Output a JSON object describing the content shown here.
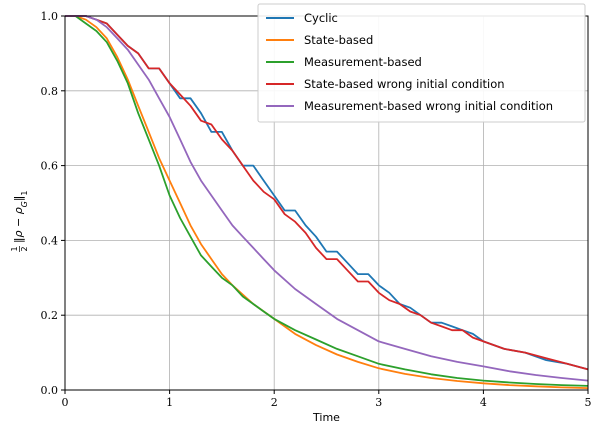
{
  "chart_data": {
    "type": "line",
    "xlabel": "Time",
    "ylabel_main": "‖ρ − ρ",
    "ylabel_sub": "G",
    "ylabel_suffix": "‖",
    "ylabel_norm": "1",
    "ylabel_frac_num": "1",
    "ylabel_frac_den": "2",
    "xlim": [
      0,
      5
    ],
    "ylim": [
      0,
      1.0
    ],
    "xticks": [
      0,
      1,
      2,
      3,
      4,
      5
    ],
    "yticks": [
      0.0,
      0.2,
      0.4,
      0.6,
      0.8,
      1.0
    ],
    "xtick_labels": [
      "0",
      "1",
      "2",
      "3",
      "4",
      "5"
    ],
    "ytick_labels": [
      "0.0",
      "0.2",
      "0.4",
      "0.6",
      "0.8",
      "1.0"
    ],
    "grid": true,
    "legend_position": "top-right",
    "series": [
      {
        "name": "Cyclic",
        "color": "#1f77b4",
        "x": [
          0,
          0.2,
          0.3,
          0.4,
          0.5,
          0.6,
          0.7,
          0.8,
          0.9,
          1.0,
          1.1,
          1.2,
          1.3,
          1.4,
          1.5,
          1.6,
          1.7,
          1.8,
          1.9,
          2.0,
          2.1,
          2.2,
          2.3,
          2.4,
          2.5,
          2.6,
          2.7,
          2.8,
          2.9,
          3.0,
          3.1,
          3.2,
          3.3,
          3.4,
          3.5,
          3.6,
          3.7,
          3.8,
          3.9,
          4.0,
          4.2,
          4.4,
          4.6,
          4.8,
          5.0
        ],
        "y": [
          1.0,
          1.0,
          0.99,
          0.98,
          0.95,
          0.92,
          0.9,
          0.86,
          0.86,
          0.82,
          0.78,
          0.78,
          0.74,
          0.69,
          0.69,
          0.64,
          0.6,
          0.6,
          0.56,
          0.52,
          0.48,
          0.48,
          0.44,
          0.41,
          0.37,
          0.37,
          0.34,
          0.31,
          0.31,
          0.28,
          0.26,
          0.23,
          0.22,
          0.2,
          0.18,
          0.18,
          0.17,
          0.16,
          0.15,
          0.13,
          0.11,
          0.1,
          0.08,
          0.07,
          0.055
        ]
      },
      {
        "name": "State-based",
        "color": "#ff7f0e",
        "x": [
          0,
          0.1,
          0.2,
          0.3,
          0.4,
          0.5,
          0.6,
          0.7,
          0.8,
          0.9,
          1.0,
          1.1,
          1.2,
          1.3,
          1.4,
          1.5,
          1.6,
          1.8,
          2.0,
          2.2,
          2.4,
          2.6,
          2.8,
          3.0,
          3.25,
          3.5,
          3.75,
          4.0,
          4.25,
          4.5,
          4.75,
          5.0
        ],
        "y": [
          1.0,
          1.0,
          0.99,
          0.97,
          0.94,
          0.89,
          0.83,
          0.76,
          0.69,
          0.62,
          0.56,
          0.5,
          0.44,
          0.39,
          0.35,
          0.31,
          0.28,
          0.23,
          0.19,
          0.15,
          0.12,
          0.095,
          0.075,
          0.058,
          0.043,
          0.032,
          0.024,
          0.018,
          0.013,
          0.01,
          0.007,
          0.005
        ]
      },
      {
        "name": "Measurement-based",
        "color": "#2ca02c",
        "x": [
          0,
          0.1,
          0.2,
          0.3,
          0.4,
          0.5,
          0.6,
          0.7,
          0.8,
          0.9,
          1.0,
          1.1,
          1.2,
          1.3,
          1.4,
          1.5,
          1.6,
          1.7,
          1.8,
          1.9,
          2.0,
          2.2,
          2.4,
          2.6,
          2.8,
          3.0,
          3.25,
          3.5,
          3.75,
          4.0,
          4.25,
          4.5,
          4.75,
          5.0
        ],
        "y": [
          1.0,
          1.0,
          0.98,
          0.96,
          0.93,
          0.88,
          0.82,
          0.74,
          0.67,
          0.6,
          0.52,
          0.46,
          0.41,
          0.36,
          0.33,
          0.3,
          0.28,
          0.25,
          0.23,
          0.21,
          0.19,
          0.16,
          0.135,
          0.11,
          0.09,
          0.07,
          0.055,
          0.042,
          0.032,
          0.025,
          0.02,
          0.016,
          0.013,
          0.011
        ]
      },
      {
        "name": "State-based wrong initial condition",
        "color": "#d62728",
        "x": [
          0,
          0.2,
          0.3,
          0.4,
          0.5,
          0.6,
          0.7,
          0.8,
          0.9,
          1.0,
          1.1,
          1.2,
          1.3,
          1.4,
          1.5,
          1.6,
          1.7,
          1.8,
          1.9,
          2.0,
          2.1,
          2.2,
          2.3,
          2.4,
          2.5,
          2.6,
          2.7,
          2.8,
          2.9,
          3.0,
          3.1,
          3.2,
          3.3,
          3.4,
          3.5,
          3.6,
          3.7,
          3.8,
          3.9,
          4.0,
          4.2,
          4.4,
          4.6,
          4.8,
          5.0
        ],
        "y": [
          1.0,
          1.0,
          0.99,
          0.98,
          0.95,
          0.92,
          0.9,
          0.86,
          0.86,
          0.82,
          0.79,
          0.76,
          0.72,
          0.71,
          0.67,
          0.64,
          0.6,
          0.56,
          0.53,
          0.51,
          0.47,
          0.45,
          0.42,
          0.38,
          0.35,
          0.35,
          0.32,
          0.29,
          0.29,
          0.26,
          0.24,
          0.23,
          0.21,
          0.2,
          0.18,
          0.17,
          0.16,
          0.16,
          0.14,
          0.13,
          0.11,
          0.1,
          0.085,
          0.07,
          0.055
        ]
      },
      {
        "name": "Measurement-based wrong initial condition",
        "color": "#9467bd",
        "x": [
          0,
          0.2,
          0.3,
          0.4,
          0.5,
          0.6,
          0.7,
          0.8,
          0.9,
          1.0,
          1.1,
          1.2,
          1.3,
          1.4,
          1.5,
          1.6,
          1.7,
          1.8,
          1.9,
          2.0,
          2.2,
          2.4,
          2.6,
          2.8,
          3.0,
          3.25,
          3.5,
          3.75,
          4.0,
          4.25,
          4.5,
          4.75,
          5.0
        ],
        "y": [
          1.0,
          1.0,
          0.99,
          0.97,
          0.94,
          0.91,
          0.87,
          0.83,
          0.78,
          0.73,
          0.67,
          0.61,
          0.56,
          0.52,
          0.48,
          0.44,
          0.41,
          0.38,
          0.35,
          0.32,
          0.27,
          0.23,
          0.19,
          0.16,
          0.13,
          0.11,
          0.09,
          0.075,
          0.063,
          0.05,
          0.04,
          0.032,
          0.025
        ]
      }
    ]
  }
}
